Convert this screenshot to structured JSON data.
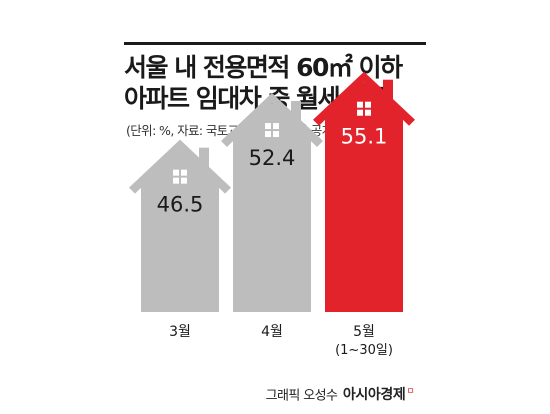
{
  "title": {
    "line1": "서울 내 전용면적 60㎡ 이하",
    "line2": "아파트 임대차 중 월세 비중"
  },
  "source": "(단위: %, 자료: 국토교통부 실거래가 공개시스템)",
  "credit": {
    "byline": "그래픽 오성수",
    "brand": "아시아경제",
    "brand_mark": "ㅁ"
  },
  "colors": {
    "house_gray": "#bdbdbd",
    "house_highlight": "#e3232c",
    "value_text_gray": "#1a1a1a",
    "value_text_highlight": "#ffffff",
    "window": "#ffffff"
  },
  "chart_data": {
    "type": "bar",
    "title": "서울 내 전용면적 60㎡ 이하 아파트 임대차 중 월세 비중",
    "unit": "%",
    "categories": [
      "3월",
      "4월",
      "5월"
    ],
    "category_sublabels": [
      "",
      "",
      "(1~30일)"
    ],
    "values": [
      46.5,
      52.4,
      55.1
    ],
    "value_labels": [
      "46.5",
      "52.4",
      "55.1"
    ],
    "highlight_index": 2,
    "xlabel": "",
    "ylabel": ""
  }
}
